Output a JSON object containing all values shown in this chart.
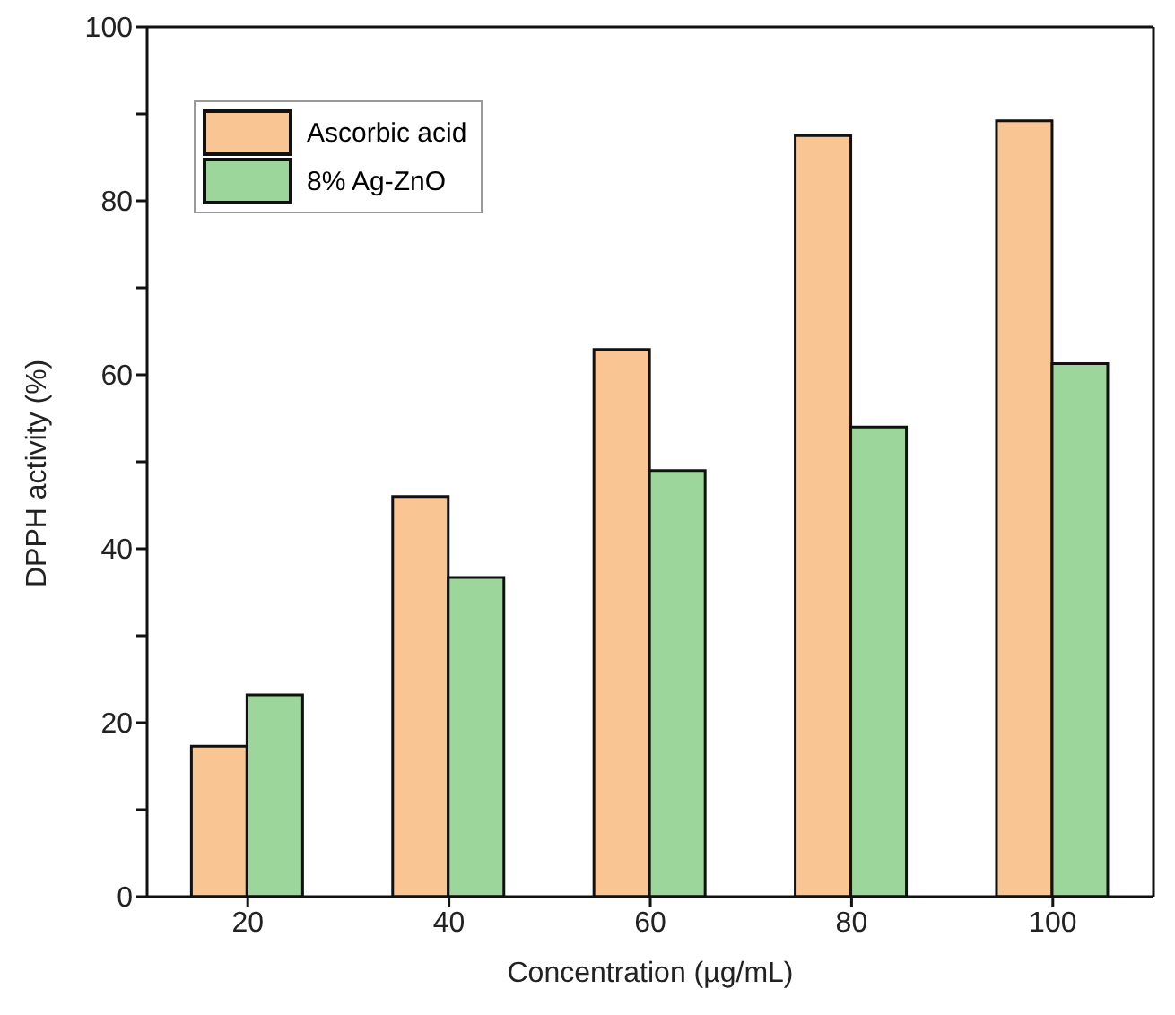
{
  "chart_data": {
    "type": "bar",
    "xlabel": "Concentration (µg/mL)",
    "ylabel": "DPPH activity (%)",
    "categories": [
      "20",
      "40",
      "60",
      "80",
      "100"
    ],
    "series": [
      {
        "name": "Ascorbic acid",
        "color": "#f9c593",
        "values": [
          17.3,
          46,
          62.9,
          87.5,
          89.2
        ]
      },
      {
        "name": "8% Ag-ZnO",
        "color": "#9dd69b",
        "values": [
          23.2,
          36.7,
          49,
          54,
          61.3
        ]
      }
    ],
    "ylim": [
      0,
      100
    ],
    "yticks": [
      0,
      {
        "value": 10,
        "label": null
      },
      20,
      {
        "value": 30,
        "label": null
      },
      40,
      {
        "value": 50,
        "label": null
      },
      60,
      {
        "value": 70,
        "label": null
      },
      80,
      {
        "value": 90,
        "label": null
      },
      100
    ],
    "grid": false,
    "legend": "top left"
  }
}
